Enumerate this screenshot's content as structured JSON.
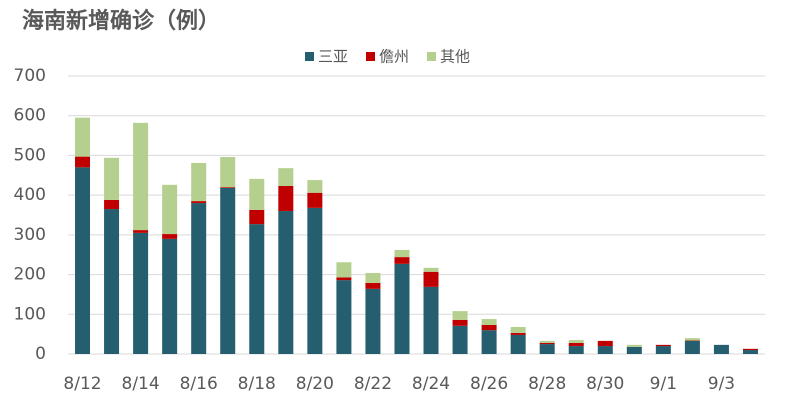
{
  "chart_data": {
    "type": "stacked_bar",
    "title": "海南新增确诊（例）",
    "categories": [
      "8/12",
      null,
      "8/14",
      null,
      "8/16",
      null,
      "8/18",
      null,
      "8/20",
      null,
      "8/22",
      null,
      "8/24",
      null,
      "8/26",
      null,
      "8/28",
      null,
      "8/30",
      null,
      "9/1",
      null,
      "9/3",
      null
    ],
    "series": [
      {
        "name": "三亚",
        "color": "#255e6e",
        "values": [
          470,
          365,
          305,
          290,
          380,
          418,
          327,
          360,
          368,
          186,
          164,
          227,
          169,
          71,
          60,
          48,
          25,
          20,
          20,
          18,
          20,
          33,
          23,
          10
        ]
      },
      {
        "name": "儋州",
        "color": "#c00000",
        "values": [
          27,
          23,
          7,
          12,
          5,
          2,
          36,
          63,
          38,
          7,
          15,
          17,
          38,
          15,
          13,
          5,
          3,
          8,
          13,
          0,
          3,
          1,
          0,
          3
        ]
      },
      {
        "name": "其他",
        "color": "#b5cf8f",
        "values": [
          98,
          106,
          270,
          124,
          96,
          76,
          78,
          45,
          32,
          38,
          25,
          18,
          10,
          22,
          15,
          15,
          5,
          7,
          0,
          5,
          0,
          6,
          0,
          0
        ]
      }
    ],
    "ylim": [
      0,
      700
    ],
    "yticks": [
      0,
      100,
      200,
      300,
      400,
      500,
      600,
      700
    ],
    "grid": true,
    "legend": "top"
  }
}
